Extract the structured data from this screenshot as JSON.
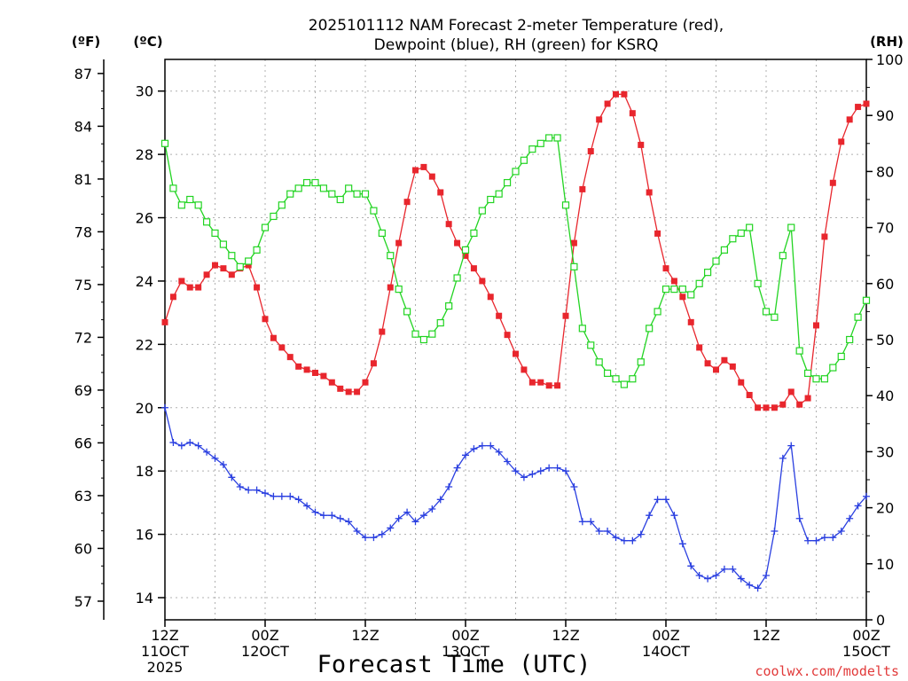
{
  "chart_data": {
    "type": "line",
    "title_line1": "2025101112 NAM Forecast 2-meter Temperature (red),",
    "title_line2": "Dewpoint (blue), RH (green) for KSRQ",
    "xlabel": "Forecast Time (UTC)",
    "credit": "coolwx.com/modelts",
    "left_f_unit": "(ºF)",
    "left_c_unit": "(ºC)",
    "right_unit": "(RH)",
    "ylim_c": [
      13.3,
      31.0
    ],
    "ylim_rh": [
      0,
      100
    ],
    "x_hours_range": [
      0,
      84
    ],
    "x_ticks": [
      {
        "hour": 0,
        "line1": "12Z",
        "line2": "11OCT",
        "line3": "2025"
      },
      {
        "hour": 12,
        "line1": "00Z",
        "line2": "12OCT",
        "line3": ""
      },
      {
        "hour": 24,
        "line1": "12Z",
        "line2": "",
        "line3": ""
      },
      {
        "hour": 36,
        "line1": "00Z",
        "line2": "13OCT",
        "line3": ""
      },
      {
        "hour": 48,
        "line1": "12Z",
        "line2": "",
        "line3": ""
      },
      {
        "hour": 60,
        "line1": "00Z",
        "line2": "14OCT",
        "line3": ""
      },
      {
        "hour": 72,
        "line1": "12Z",
        "line2": "",
        "line3": ""
      },
      {
        "hour": 84,
        "line1": "00Z",
        "line2": "15OCT",
        "line3": ""
      }
    ],
    "c_ticks": [
      "14",
      "16",
      "18",
      "20",
      "22",
      "24",
      "26",
      "28",
      "30"
    ],
    "f_ticks": [
      "57",
      "60",
      "63",
      "66",
      "69",
      "72",
      "75",
      "78",
      "81",
      "84",
      "87"
    ],
    "rh_ticks": [
      "0",
      "10",
      "20",
      "30",
      "40",
      "50",
      "60",
      "70",
      "80",
      "90",
      "100"
    ],
    "series": [
      {
        "name": "Temperature (°C)",
        "color": "#e8262d",
        "marker": "filled-square",
        "values": [
          22.7,
          23.5,
          24.0,
          23.8,
          23.8,
          24.2,
          24.5,
          24.4,
          24.2,
          24.4,
          24.5,
          23.8,
          22.8,
          22.2,
          21.9,
          21.6,
          21.3,
          21.2,
          21.1,
          21.0,
          20.8,
          20.6,
          20.5,
          20.5,
          20.8,
          21.4,
          22.4,
          23.8,
          25.2,
          26.5,
          27.5,
          27.6,
          27.3,
          26.8,
          25.8,
          25.2,
          24.8,
          24.4,
          24.0,
          23.5,
          22.9,
          22.3,
          21.7,
          21.2,
          20.8,
          20.8,
          20.7,
          20.7,
          22.9,
          25.2,
          26.9,
          28.1,
          29.1,
          29.6,
          29.9,
          29.9,
          29.3,
          28.3,
          26.8,
          25.5,
          24.4,
          24.0,
          23.5,
          22.7,
          21.9,
          21.4,
          21.2,
          21.5,
          21.3,
          20.8,
          20.4,
          20.0,
          20.0,
          20.0,
          20.1,
          20.5,
          20.1,
          20.3,
          22.6,
          25.4,
          27.1,
          28.4,
          29.1,
          29.5,
          29.6
        ]
      },
      {
        "name": "Dewpoint (°C)",
        "color": "#2a3fe0",
        "marker": "plus",
        "values": [
          20.0,
          18.9,
          18.8,
          18.9,
          18.8,
          18.6,
          18.4,
          18.2,
          17.8,
          17.5,
          17.4,
          17.4,
          17.3,
          17.2,
          17.2,
          17.2,
          17.1,
          16.9,
          16.7,
          16.6,
          16.6,
          16.5,
          16.4,
          16.1,
          15.9,
          15.9,
          16.0,
          16.2,
          16.5,
          16.7,
          16.4,
          16.6,
          16.8,
          17.1,
          17.5,
          18.1,
          18.5,
          18.7,
          18.8,
          18.8,
          18.6,
          18.3,
          18.0,
          17.8,
          17.9,
          18.0,
          18.1,
          18.1,
          18.0,
          17.5,
          16.4,
          16.4,
          16.1,
          16.1,
          15.9,
          15.8,
          15.8,
          16.0,
          16.6,
          17.1,
          17.1,
          16.6,
          15.7,
          15.0,
          14.7,
          14.6,
          14.7,
          14.9,
          14.9,
          14.6,
          14.4,
          14.3,
          14.7,
          16.1,
          18.4,
          18.8,
          16.5,
          15.8,
          15.8,
          15.9,
          15.9,
          16.1,
          16.5,
          16.9,
          17.2
        ]
      },
      {
        "name": "RH (%)",
        "color": "#22d422",
        "marker": "open-square",
        "values": [
          85,
          77,
          74,
          75,
          74,
          71,
          69,
          67,
          65,
          63,
          64,
          66,
          70,
          72,
          74,
          76,
          77,
          78,
          78,
          77,
          76,
          75,
          77,
          76,
          76,
          73,
          69,
          65,
          59,
          55,
          51,
          50,
          51,
          53,
          56,
          61,
          66,
          69,
          73,
          75,
          76,
          78,
          80,
          82,
          84,
          85,
          86,
          86,
          74,
          63,
          52,
          49,
          46,
          44,
          43,
          42,
          43,
          46,
          52,
          55,
          59,
          59,
          59,
          58,
          60,
          62,
          64,
          66,
          68,
          69,
          70,
          60,
          55,
          54,
          65,
          70,
          48,
          44,
          43,
          43,
          45,
          47,
          50,
          54,
          57
        ]
      }
    ]
  }
}
